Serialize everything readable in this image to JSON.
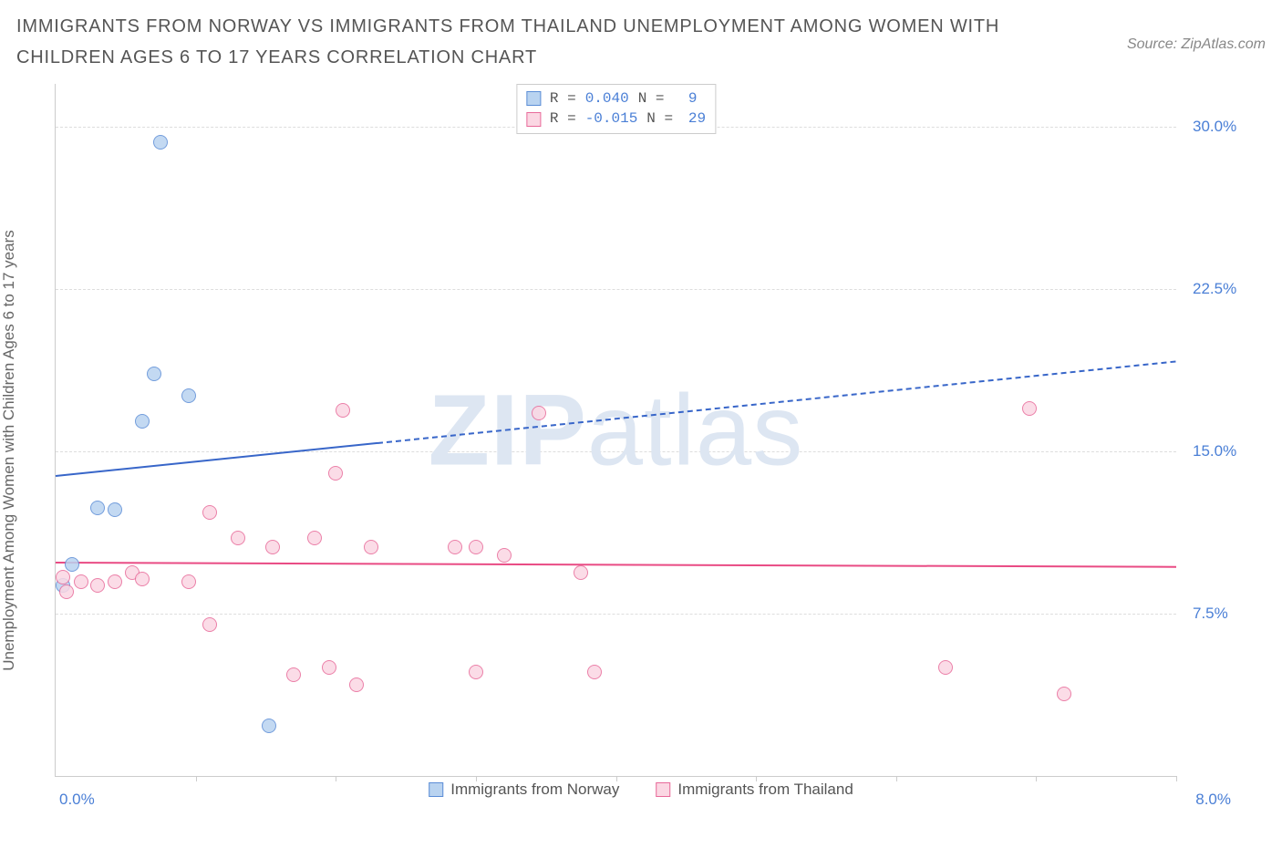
{
  "title": "IMMIGRANTS FROM NORWAY VS IMMIGRANTS FROM THAILAND UNEMPLOYMENT AMONG WOMEN WITH CHILDREN AGES 6 TO 17 YEARS CORRELATION CHART",
  "source": "Source: ZipAtlas.com",
  "ylabel": "Unemployment Among Women with Children Ages 6 to 17 years",
  "watermark_bold": "ZIP",
  "watermark_rest": "atlas",
  "chart": {
    "type": "scatter",
    "xlim": [
      0,
      8
    ],
    "ylim": [
      0,
      32
    ],
    "x_ticks": [
      1,
      2,
      3,
      4,
      5,
      6,
      7,
      8
    ],
    "x_axis_start_label": "0.0%",
    "x_axis_end_label": "8.0%",
    "y_gridlines": [
      7.5,
      15.0,
      22.5,
      30.0
    ],
    "y_tick_labels": [
      "7.5%",
      "15.0%",
      "22.5%",
      "30.0%"
    ],
    "background_color": "#ffffff",
    "grid_color": "#dddddd",
    "axis_color": "#cccccc",
    "tick_label_color": "#4a7fd6",
    "point_radius": 8,
    "series": [
      {
        "key": "norway",
        "label": "Immigrants from Norway",
        "color_fill": "#b9d3f0",
        "color_stroke": "#5b8dd6",
        "R_label": "R =",
        "R_value": "0.040",
        "N_label": "N =",
        "N_value": "9",
        "trend": {
          "y_at_x0": 13.9,
          "y_at_x8": 19.2,
          "solid_until_x": 2.3,
          "color": "#3866c9",
          "width": 2
        },
        "points": [
          {
            "x": 0.75,
            "y": 29.3
          },
          {
            "x": 0.7,
            "y": 18.6
          },
          {
            "x": 0.95,
            "y": 17.6
          },
          {
            "x": 0.62,
            "y": 16.4
          },
          {
            "x": 0.3,
            "y": 12.4
          },
          {
            "x": 0.42,
            "y": 12.3
          },
          {
            "x": 0.12,
            "y": 9.8
          },
          {
            "x": 0.05,
            "y": 8.8
          },
          {
            "x": 1.52,
            "y": 2.3
          }
        ]
      },
      {
        "key": "thailand",
        "label": "Immigrants from Thailand",
        "color_fill": "#fbd7e3",
        "color_stroke": "#e86a9a",
        "R_label": "R =",
        "R_value": "-0.015",
        "N_label": "N =",
        "N_value": "29",
        "trend": {
          "y_at_x0": 9.9,
          "y_at_x8": 9.7,
          "solid_until_x": 8,
          "color": "#e94b84",
          "width": 2
        },
        "points": [
          {
            "x": 2.05,
            "y": 16.9
          },
          {
            "x": 3.45,
            "y": 16.8
          },
          {
            "x": 6.95,
            "y": 17.0
          },
          {
            "x": 2.0,
            "y": 14.0
          },
          {
            "x": 1.1,
            "y": 12.2
          },
          {
            "x": 1.3,
            "y": 11.0
          },
          {
            "x": 1.55,
            "y": 10.6
          },
          {
            "x": 1.85,
            "y": 11.0
          },
          {
            "x": 2.25,
            "y": 10.6
          },
          {
            "x": 2.85,
            "y": 10.6
          },
          {
            "x": 3.0,
            "y": 10.6
          },
          {
            "x": 3.2,
            "y": 10.2
          },
          {
            "x": 3.75,
            "y": 9.4
          },
          {
            "x": 0.05,
            "y": 9.2
          },
          {
            "x": 0.18,
            "y": 9.0
          },
          {
            "x": 0.3,
            "y": 8.8
          },
          {
            "x": 0.42,
            "y": 9.0
          },
          {
            "x": 0.55,
            "y": 9.4
          },
          {
            "x": 0.62,
            "y": 9.1
          },
          {
            "x": 0.95,
            "y": 9.0
          },
          {
            "x": 1.1,
            "y": 7.0
          },
          {
            "x": 1.7,
            "y": 4.7
          },
          {
            "x": 1.95,
            "y": 5.0
          },
          {
            "x": 2.15,
            "y": 4.2
          },
          {
            "x": 3.0,
            "y": 4.8
          },
          {
            "x": 3.85,
            "y": 4.8
          },
          {
            "x": 6.35,
            "y": 5.0
          },
          {
            "x": 7.2,
            "y": 3.8
          },
          {
            "x": 0.08,
            "y": 8.5
          }
        ]
      }
    ],
    "legend_stat_color": "#4a7fd6"
  }
}
